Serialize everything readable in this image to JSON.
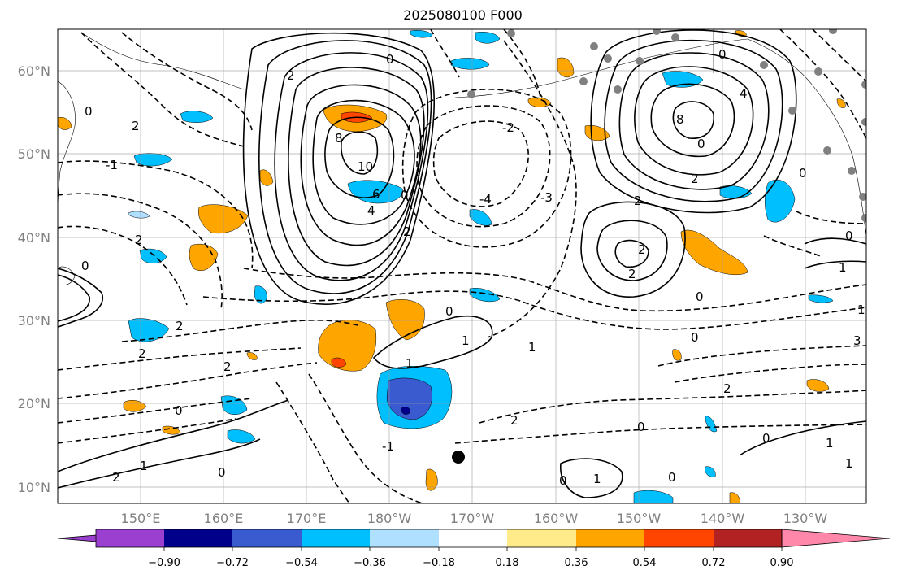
{
  "title": "2025080100 F000",
  "map": {
    "projection": "lat-lon",
    "lon_range": [
      "140°E",
      "120°W"
    ],
    "lat_range": [
      "8°N",
      "65°N"
    ],
    "grid": true,
    "lon_ticks": [
      "150°E",
      "160°E",
      "170°E",
      "180°W",
      "170°W",
      "160°W",
      "150°W",
      "140°W",
      "130°W"
    ],
    "lat_ticks": [
      "10°N",
      "20°N",
      "30°N",
      "40°N",
      "50°N",
      "60°N"
    ]
  },
  "shading": {
    "colors": {
      "lt_-0.90": "#9b3fd0",
      "-0.90_-0.72": "#00008b",
      "-0.72_-0.54": "#3a5bd0",
      "-0.54_-0.36": "#00bfff",
      "-0.36_-0.18": "#b0e0ff",
      "-0.18_0.18": "#ffffff",
      "0.18_0.36": "#ffeb8a",
      "0.36_0.54": "#ffa500",
      "0.54_0.72": "#ff4500",
      "0.72_0.90": "#b22222",
      "gt_0.90": "#ff88aa"
    }
  },
  "colorbar": {
    "ticks": [
      "−0.90",
      "−0.72",
      "−0.54",
      "−0.36",
      "−0.18",
      "0.18",
      "0.36",
      "0.54",
      "0.72",
      "0.90"
    ],
    "extend": "both"
  },
  "contour_labels": [
    {
      "text": "0"
    },
    {
      "text": "2"
    },
    {
      "text": "8"
    },
    {
      "text": "10"
    },
    {
      "text": "6"
    },
    {
      "text": "4"
    },
    {
      "text": "-2"
    },
    {
      "text": "-4"
    },
    {
      "text": "-3"
    },
    {
      "text": "2"
    },
    {
      "text": "0"
    },
    {
      "text": "0"
    },
    {
      "text": "4"
    },
    {
      "text": "8"
    },
    {
      "text": "2"
    },
    {
      "text": "0"
    },
    {
      "text": "2"
    },
    {
      "text": "2"
    },
    {
      "text": "1"
    },
    {
      "text": "2"
    },
    {
      "text": "1"
    },
    {
      "text": "2"
    },
    {
      "text": "0"
    },
    {
      "text": "0"
    },
    {
      "text": "1"
    },
    {
      "text": "1"
    },
    {
      "text": "1"
    },
    {
      "text": "3"
    },
    {
      "text": "0"
    },
    {
      "text": "2"
    },
    {
      "text": "0"
    },
    {
      "text": "1"
    },
    {
      "text": "0"
    },
    {
      "text": "1"
    },
    {
      "text": "0"
    },
    {
      "text": "1"
    },
    {
      "text": "0"
    },
    {
      "text": "0"
    },
    {
      "text": "2"
    },
    {
      "text": "2"
    },
    {
      "text": "0"
    },
    {
      "text": "2"
    },
    {
      "text": "0"
    },
    {
      "text": "-1"
    },
    {
      "text": "2"
    },
    {
      "text": "1"
    },
    {
      "text": "0"
    },
    {
      "text": "2"
    },
    {
      "text": "2"
    },
    {
      "text": "-1"
    },
    {
      "text": "0"
    },
    {
      "text": "0"
    }
  ]
}
